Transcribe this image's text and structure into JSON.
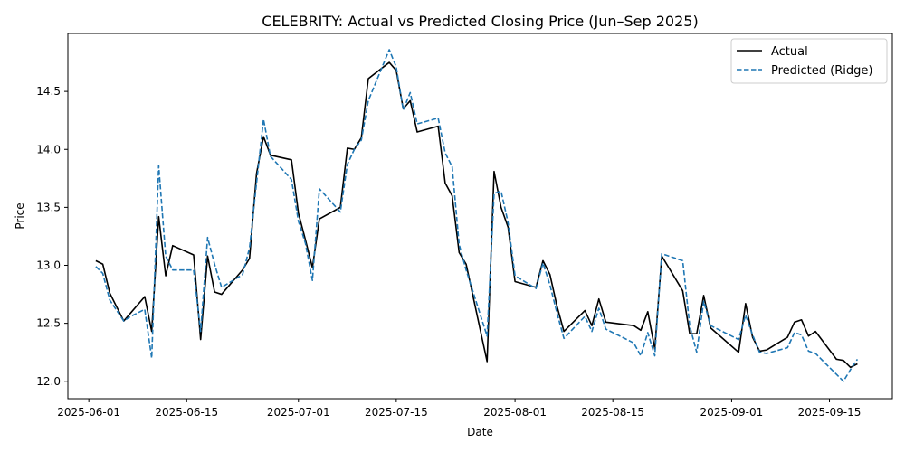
{
  "chart_data": {
    "type": "line",
    "title": "CELEBRITY: Actual vs Predicted Closing Price (Jun–Sep 2025)",
    "xlabel": "Date",
    "ylabel": "Price",
    "xlim": [
      "2025-05-29",
      "2025-09-24"
    ],
    "ylim": [
      11.85,
      15.0
    ],
    "grid": false,
    "legend_position": "top-right",
    "x_ticks": [
      "2025-06-01",
      "2025-06-15",
      "2025-07-01",
      "2025-07-15",
      "2025-08-01",
      "2025-08-15",
      "2025-09-01",
      "2025-09-15"
    ],
    "y_ticks": [
      "12.0",
      "12.5",
      "13.0",
      "13.5",
      "14.0",
      "14.5"
    ],
    "series": [
      {
        "name": "Actual",
        "color": "#000000",
        "style": "solid",
        "points": [
          [
            "2025-06-02",
            13.04
          ],
          [
            "2025-06-03",
            13.01
          ],
          [
            "2025-06-04",
            12.76
          ],
          [
            "2025-06-06",
            12.52
          ],
          [
            "2025-06-09",
            12.73
          ],
          [
            "2025-06-10",
            12.43
          ],
          [
            "2025-06-11",
            13.42
          ],
          [
            "2025-06-12",
            12.91
          ],
          [
            "2025-06-13",
            13.17
          ],
          [
            "2025-06-16",
            13.09
          ],
          [
            "2025-06-17",
            12.36
          ],
          [
            "2025-06-18",
            13.08
          ],
          [
            "2025-06-19",
            12.77
          ],
          [
            "2025-06-20",
            12.75
          ],
          [
            "2025-06-23",
            12.96
          ],
          [
            "2025-06-24",
            13.06
          ],
          [
            "2025-06-25",
            13.79
          ],
          [
            "2025-06-26",
            14.11
          ],
          [
            "2025-06-27",
            13.95
          ],
          [
            "2025-06-30",
            13.91
          ],
          [
            "2025-07-01",
            13.45
          ],
          [
            "2025-07-02",
            13.22
          ],
          [
            "2025-07-03",
            12.98
          ],
          [
            "2025-07-04",
            13.4
          ],
          [
            "2025-07-07",
            13.5
          ],
          [
            "2025-07-08",
            14.01
          ],
          [
            "2025-07-09",
            14.0
          ],
          [
            "2025-07-10",
            14.1
          ],
          [
            "2025-07-11",
            14.61
          ],
          [
            "2025-07-14",
            14.75
          ],
          [
            "2025-07-15",
            14.68
          ],
          [
            "2025-07-16",
            14.35
          ],
          [
            "2025-07-17",
            14.42
          ],
          [
            "2025-07-18",
            14.15
          ],
          [
            "2025-07-21",
            14.2
          ],
          [
            "2025-07-22",
            13.71
          ],
          [
            "2025-07-23",
            13.6
          ],
          [
            "2025-07-24",
            13.11
          ],
          [
            "2025-07-25",
            13.01
          ],
          [
            "2025-07-28",
            12.17
          ],
          [
            "2025-07-29",
            13.81
          ],
          [
            "2025-07-30",
            13.5
          ],
          [
            "2025-07-31",
            13.33
          ],
          [
            "2025-08-01",
            12.86
          ],
          [
            "2025-08-04",
            12.81
          ],
          [
            "2025-08-05",
            13.04
          ],
          [
            "2025-08-06",
            12.92
          ],
          [
            "2025-08-07",
            12.65
          ],
          [
            "2025-08-08",
            12.43
          ],
          [
            "2025-08-11",
            12.61
          ],
          [
            "2025-08-12",
            12.48
          ],
          [
            "2025-08-13",
            12.71
          ],
          [
            "2025-08-14",
            12.51
          ],
          [
            "2025-08-18",
            12.48
          ],
          [
            "2025-08-19",
            12.44
          ],
          [
            "2025-08-20",
            12.6
          ],
          [
            "2025-08-21",
            12.28
          ],
          [
            "2025-08-22",
            13.08
          ],
          [
            "2025-08-25",
            12.78
          ],
          [
            "2025-08-26",
            12.41
          ],
          [
            "2025-08-27",
            12.41
          ],
          [
            "2025-08-28",
            12.74
          ],
          [
            "2025-08-29",
            12.46
          ],
          [
            "2025-09-02",
            12.25
          ],
          [
            "2025-09-03",
            12.67
          ],
          [
            "2025-09-04",
            12.38
          ],
          [
            "2025-09-05",
            12.26
          ],
          [
            "2025-09-06",
            12.27
          ],
          [
            "2025-09-09",
            12.38
          ],
          [
            "2025-09-10",
            12.51
          ],
          [
            "2025-09-11",
            12.53
          ],
          [
            "2025-09-12",
            12.39
          ],
          [
            "2025-09-13",
            12.43
          ],
          [
            "2025-09-16",
            12.19
          ],
          [
            "2025-09-17",
            12.18
          ],
          [
            "2025-09-18",
            12.12
          ],
          [
            "2025-09-19",
            12.15
          ]
        ]
      },
      {
        "name": "Predicted (Ridge)",
        "color": "#1f77b4",
        "style": "dashed",
        "points": [
          [
            "2025-06-02",
            12.99
          ],
          [
            "2025-06-03",
            12.93
          ],
          [
            "2025-06-04",
            12.7
          ],
          [
            "2025-06-06",
            12.52
          ],
          [
            "2025-06-07",
            12.56
          ],
          [
            "2025-06-09",
            12.62
          ],
          [
            "2025-06-10",
            12.2
          ],
          [
            "2025-06-11",
            13.86
          ],
          [
            "2025-06-12",
            13.08
          ],
          [
            "2025-06-13",
            12.96
          ],
          [
            "2025-06-16",
            12.96
          ],
          [
            "2025-06-17",
            12.43
          ],
          [
            "2025-06-18",
            13.24
          ],
          [
            "2025-06-19",
            13.01
          ],
          [
            "2025-06-20",
            12.81
          ],
          [
            "2025-06-23",
            12.92
          ],
          [
            "2025-06-24",
            13.15
          ],
          [
            "2025-06-25",
            13.71
          ],
          [
            "2025-06-26",
            14.26
          ],
          [
            "2025-06-27",
            13.94
          ],
          [
            "2025-06-30",
            13.74
          ],
          [
            "2025-07-01",
            13.38
          ],
          [
            "2025-07-02",
            13.19
          ],
          [
            "2025-07-03",
            12.87
          ],
          [
            "2025-07-04",
            13.66
          ],
          [
            "2025-07-07",
            13.46
          ],
          [
            "2025-07-08",
            13.87
          ],
          [
            "2025-07-09",
            14.0
          ],
          [
            "2025-07-10",
            14.08
          ],
          [
            "2025-07-11",
            14.42
          ],
          [
            "2025-07-14",
            14.86
          ],
          [
            "2025-07-15",
            14.71
          ],
          [
            "2025-07-16",
            14.34
          ],
          [
            "2025-07-17",
            14.49
          ],
          [
            "2025-07-18",
            14.22
          ],
          [
            "2025-07-21",
            14.27
          ],
          [
            "2025-07-22",
            13.97
          ],
          [
            "2025-07-23",
            13.85
          ],
          [
            "2025-07-24",
            13.18
          ],
          [
            "2025-07-25",
            12.96
          ],
          [
            "2025-07-28",
            12.39
          ],
          [
            "2025-07-29",
            13.62
          ],
          [
            "2025-07-30",
            13.64
          ],
          [
            "2025-07-31",
            13.37
          ],
          [
            "2025-08-01",
            12.91
          ],
          [
            "2025-08-04",
            12.8
          ],
          [
            "2025-08-05",
            13.02
          ],
          [
            "2025-08-06",
            12.83
          ],
          [
            "2025-08-07",
            12.59
          ],
          [
            "2025-08-08",
            12.37
          ],
          [
            "2025-08-11",
            12.56
          ],
          [
            "2025-08-12",
            12.43
          ],
          [
            "2025-08-13",
            12.63
          ],
          [
            "2025-08-14",
            12.45
          ],
          [
            "2025-08-18",
            12.33
          ],
          [
            "2025-08-19",
            12.22
          ],
          [
            "2025-08-20",
            12.42
          ],
          [
            "2025-08-21",
            12.22
          ],
          [
            "2025-08-22",
            13.1
          ],
          [
            "2025-08-25",
            13.04
          ],
          [
            "2025-08-26",
            12.48
          ],
          [
            "2025-08-27",
            12.25
          ],
          [
            "2025-08-28",
            12.69
          ],
          [
            "2025-08-29",
            12.48
          ],
          [
            "2025-09-02",
            12.36
          ],
          [
            "2025-09-03",
            12.57
          ],
          [
            "2025-09-04",
            12.4
          ],
          [
            "2025-09-05",
            12.25
          ],
          [
            "2025-09-06",
            12.24
          ],
          [
            "2025-09-09",
            12.29
          ],
          [
            "2025-09-10",
            12.42
          ],
          [
            "2025-09-11",
            12.4
          ],
          [
            "2025-09-12",
            12.26
          ],
          [
            "2025-09-13",
            12.24
          ],
          [
            "2025-09-16",
            12.06
          ],
          [
            "2025-09-17",
            12.0
          ],
          [
            "2025-09-18",
            12.1
          ],
          [
            "2025-09-19",
            12.19
          ]
        ]
      }
    ]
  }
}
